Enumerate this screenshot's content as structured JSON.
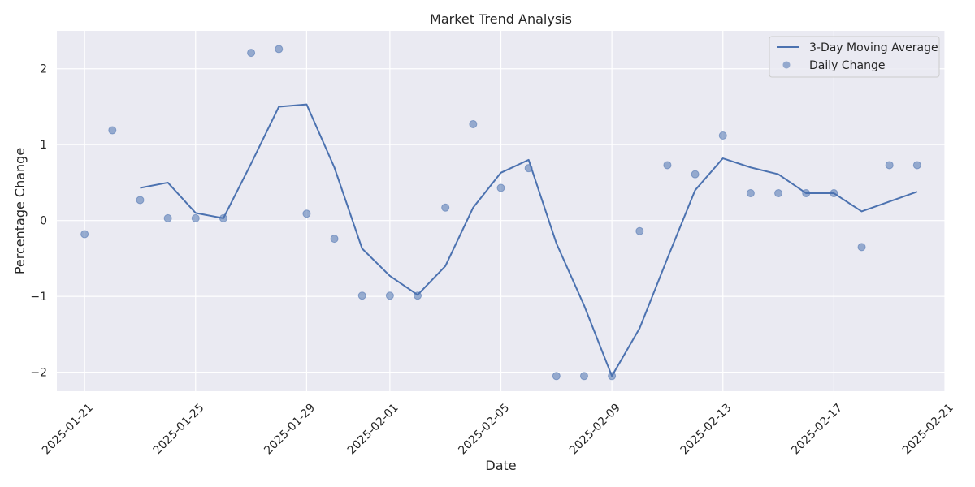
{
  "colors": {
    "plot_background": "#EAEAF2",
    "grid": "#FFFFFF",
    "line": "#4C72B0",
    "point": "#4C72B0",
    "text": "#262626"
  },
  "chart_data": {
    "type": "line",
    "title": "Market Trend Analysis",
    "xlabel": "Date",
    "ylabel": "Percentage Change",
    "x": [
      "2025-01-21",
      "2025-01-22",
      "2025-01-23",
      "2025-01-24",
      "2025-01-25",
      "2025-01-26",
      "2025-01-27",
      "2025-01-28",
      "2025-01-29",
      "2025-01-30",
      "2025-01-31",
      "2025-02-01",
      "2025-02-02",
      "2025-02-03",
      "2025-02-04",
      "2025-02-05",
      "2025-02-06",
      "2025-02-07",
      "2025-02-08",
      "2025-02-09",
      "2025-02-10",
      "2025-02-11",
      "2025-02-12",
      "2025-02-13",
      "2025-02-14",
      "2025-02-15",
      "2025-02-16",
      "2025-02-17",
      "2025-02-18",
      "2025-02-19",
      "2025-02-20"
    ],
    "xlim": [
      "2025-01-20",
      "2025-02-21"
    ],
    "ylim": [
      -2.25,
      2.5
    ],
    "x_ticks": [
      "2025-01-21",
      "2025-01-25",
      "2025-01-29",
      "2025-02-01",
      "2025-02-05",
      "2025-02-09",
      "2025-02-13",
      "2025-02-17",
      "2025-02-21"
    ],
    "y_ticks": [
      "−2",
      "−1",
      "0",
      "1",
      "2"
    ],
    "y_tick_values": [
      -2,
      -1,
      0,
      1,
      2
    ],
    "grid": true,
    "legend_position": "top-right",
    "series": [
      {
        "name": "3-Day Moving Average",
        "kind": "line",
        "values": [
          null,
          null,
          0.43,
          0.5,
          0.1,
          0.03,
          0.75,
          1.5,
          1.53,
          0.7,
          -0.37,
          -0.73,
          -0.98,
          -0.6,
          0.17,
          0.63,
          0.8,
          -0.3,
          -1.12,
          -2.05,
          -1.42,
          -0.5,
          0.4,
          0.82,
          0.7,
          0.61,
          0.36,
          0.36,
          0.12,
          0.25,
          0.38
        ]
      },
      {
        "name": "Daily Change",
        "kind": "scatter",
        "values": [
          -0.18,
          1.19,
          0.27,
          0.03,
          0.03,
          0.03,
          2.21,
          2.26,
          0.09,
          -0.24,
          -0.99,
          -0.99,
          -0.99,
          0.17,
          1.27,
          0.43,
          0.69,
          -2.05,
          -2.05,
          -2.05,
          -0.14,
          0.73,
          0.61,
          1.12,
          0.36,
          0.36,
          0.36,
          0.36,
          -0.35,
          0.73,
          0.73
        ]
      }
    ]
  }
}
